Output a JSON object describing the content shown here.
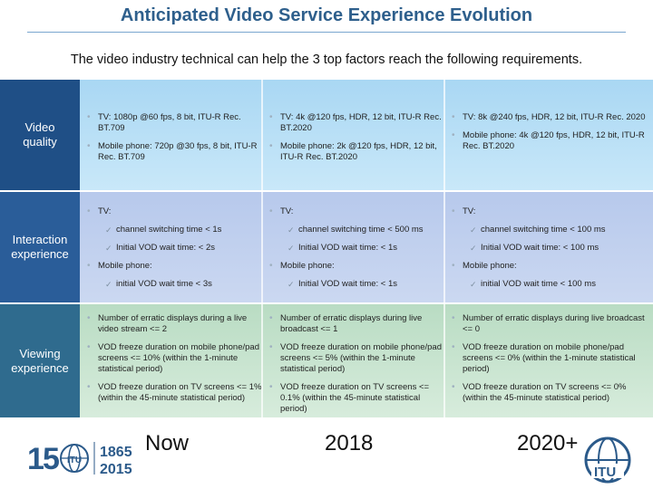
{
  "title": "Anticipated Video Service Experience Evolution",
  "subtitle": "The video industry technical can help the 3 top factors reach the following requirements.",
  "rows": [
    {
      "label_line1": "Video",
      "label_line2": "quality",
      "now": [
        "TV: 1080p @60 fps, 8 bit, ITU-R Rec. BT.709",
        "Mobile phone: 720p @30 fps, 8 bit, ITU-R Rec. BT.709"
      ],
      "y2018": [
        "TV: 4k @120 fps, HDR, 12 bit, ITU-R Rec. BT.2020",
        "Mobile phone: 2k @120 fps, HDR, 12 bit, ITU-R Rec. BT.2020"
      ],
      "y2020": [
        "TV: 8k @240 fps, HDR, 12 bit, ITU-R Rec. 2020",
        "Mobile phone: 4k @120 fps, HDR, 12 bit, ITU-R Rec. BT.2020"
      ]
    },
    {
      "label_line1": "Interaction",
      "label_line2": "experience",
      "now": {
        "tv": "TV:",
        "tv_sub": [
          "channel switching time < 1s",
          "Initial VOD wait time: < 2s"
        ],
        "mobile": "Mobile phone:",
        "mobile_sub": [
          "initial VOD wait time < 3s"
        ]
      },
      "y2018": {
        "tv": "TV:",
        "tv_sub": [
          "channel switching time < 500 ms",
          "Initial VOD wait time: < 1s"
        ],
        "mobile": "Mobile phone:",
        "mobile_sub": [
          "Initial VOD wait time: < 1s"
        ]
      },
      "y2020": {
        "tv": "TV:",
        "tv_sub": [
          "channel switching time < 100 ms",
          "Initial VOD wait time: < 100 ms"
        ],
        "mobile": "Mobile phone:",
        "mobile_sub": [
          "initial VOD wait time < 100 ms"
        ]
      }
    },
    {
      "label_line1": "Viewing",
      "label_line2": "experience",
      "now": [
        "Number of erratic displays during a live video stream <= 2",
        "VOD freeze duration on mobile phone/pad screens <= 10% (within the 1-minute statistical period)",
        "VOD freeze duration on TV screens <= 1% (within the 45-minute statistical period)"
      ],
      "y2018": [
        "Number of erratic displays during live broadcast <= 1",
        "VOD freeze duration on mobile phone/pad screens <= 5% (within the 1-minute statistical period)",
        "VOD freeze duration on TV screens <= 0.1% (within the 45-minute statistical period)"
      ],
      "y2020": [
        "Number of erratic displays during live broadcast <= 0",
        "VOD freeze duration on mobile phone/pad screens <= 0% (within the 1-minute statistical period)",
        "VOD freeze duration on TV screens <= 0% (within the 45-minute statistical period)"
      ]
    }
  ],
  "footer": {
    "now": "Now",
    "y2018": "2018",
    "y2020": "2020+"
  },
  "logo": {
    "text_150": "150",
    "years_top": "1865",
    "years_bottom": "2015",
    "itu": "ITU"
  },
  "colors": {
    "title": "#2e5f8c",
    "row1": "#a9d7f3",
    "row2": "#b7c9ec",
    "row3": "#b9dcc3",
    "label1": "#1f4f86",
    "label2": "#2a5d99",
    "label3": "#2f6b8e"
  }
}
